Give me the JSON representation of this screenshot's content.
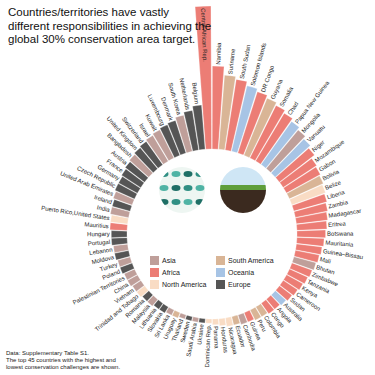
{
  "chart_data": {
    "type": "bar",
    "title": "Countries/territories have vastly different responsibilities in achieving the global 30% conservation area target.",
    "notes": [
      "Data: Supplementary Table S1.",
      "The top 45 countries with the highest and lowest conservation challenges are shown."
    ],
    "categories": [
      "Central African Rep.",
      "Namibia",
      "Suriname",
      "South Sudan",
      "Solomon Islands",
      "DR Congo",
      "Guyana",
      "Somalia",
      "Chad",
      "Papua New Guinea",
      "Mongolia",
      "Vanuatu",
      "Niger",
      "Mozambique",
      "Gabon",
      "Bolivia",
      "Belize",
      "Liberia",
      "Zambia",
      "Madagascar",
      "Eritrea",
      "Botswana",
      "Mauritania",
      "Guinea–Bissau",
      "Mali",
      "Bhutan",
      "Zimbabwe",
      "Tanzania",
      "Kenya",
      "Cameroon",
      "Sudan",
      "Australia",
      "Angola",
      "Congo",
      "Colombia",
      "Peru",
      "Guinea",
      "Cambodia",
      "Ecuador",
      "Nicaragua",
      "Honduras",
      "Panama",
      "Dominican Rep.",
      "Ukraine",
      "Saudi Arabia",
      "Sweden",
      "Thailand",
      "Uruguay",
      "Sri Lanka",
      "Slovakia",
      "Lithuania",
      "Malaysia",
      "Romania",
      "Trinidad and Tobago",
      "Vietnam",
      "China",
      "Palestinian Territories",
      "Poland",
      "Turkey",
      "Moldova",
      "Lebanon",
      "Portugal",
      "Hungary",
      "Mauritius",
      "Puerto Rico,United States",
      "India",
      "Ireland",
      "United Arab Emirates",
      "Czech Republic",
      "Germany",
      "France",
      "Austria",
      "Bangladesh",
      "United Kingdom",
      "Switzerland",
      "Israel",
      "Kuwait",
      "Luxembourg",
      "Denmark",
      "South Korea",
      "Netherlands",
      "Belgium"
    ],
    "values": [
      100,
      58,
      52,
      50,
      47,
      45,
      43,
      41,
      39,
      37,
      35,
      33,
      31,
      28,
      27,
      26,
      25,
      24,
      23,
      22,
      21,
      20,
      19,
      18,
      17,
      16,
      15,
      14,
      13,
      12,
      11,
      10,
      9,
      9,
      8,
      8,
      7,
      7,
      6,
      6,
      5,
      4,
      3,
      3,
      3,
      3,
      3,
      4,
      4,
      5,
      5,
      6,
      6,
      7,
      7,
      8,
      8,
      9,
      9,
      10,
      10,
      11,
      11,
      12,
      12,
      13,
      13,
      14,
      15,
      15,
      16,
      17,
      18,
      19,
      20,
      21,
      22,
      23,
      24,
      26,
      28,
      31
    ],
    "region": [
      "Africa",
      "Africa",
      "South America",
      "Africa",
      "Oceania",
      "Africa",
      "South America",
      "Africa",
      "Africa",
      "Oceania",
      "Asia",
      "Oceania",
      "Africa",
      "Africa",
      "Africa",
      "South America",
      "North America",
      "Africa",
      "Africa",
      "Africa",
      "Africa",
      "Africa",
      "Africa",
      "Africa",
      "Africa",
      "Asia",
      "Africa",
      "Africa",
      "Africa",
      "Africa",
      "Africa",
      "Oceania",
      "Africa",
      "Africa",
      "South America",
      "South America",
      "Africa",
      "Asia",
      "South America",
      "North America",
      "North America",
      "North America",
      "North America",
      "Europe",
      "Asia",
      "Europe",
      "Asia",
      "South America",
      "Asia",
      "Europe",
      "Europe",
      "Asia",
      "Europe",
      "North America",
      "Asia",
      "Asia",
      "Asia",
      "Europe",
      "Asia",
      "Europe",
      "Asia",
      "Europe",
      "Europe",
      "Africa",
      "North America",
      "Asia",
      "Europe",
      "Asia",
      "Europe",
      "Europe",
      "Europe",
      "Europe",
      "Asia",
      "Europe",
      "Europe",
      "Asia",
      "Asia",
      "Europe",
      "Europe",
      "Asia",
      "Europe",
      "Europe"
    ],
    "regions": [
      {
        "name": "Asia",
        "color": "#bf9f9a"
      },
      {
        "name": "Africa",
        "color": "#ec7d75"
      },
      {
        "name": "North America",
        "color": "#f9dcc4"
      },
      {
        "name": "South America",
        "color": "#d9b596"
      },
      {
        "name": "Oceania",
        "color": "#a7c4e5"
      },
      {
        "name": "Europe",
        "color": "#555555"
      }
    ],
    "ylim": [
      0,
      100
    ],
    "tick_labels": false
  }
}
